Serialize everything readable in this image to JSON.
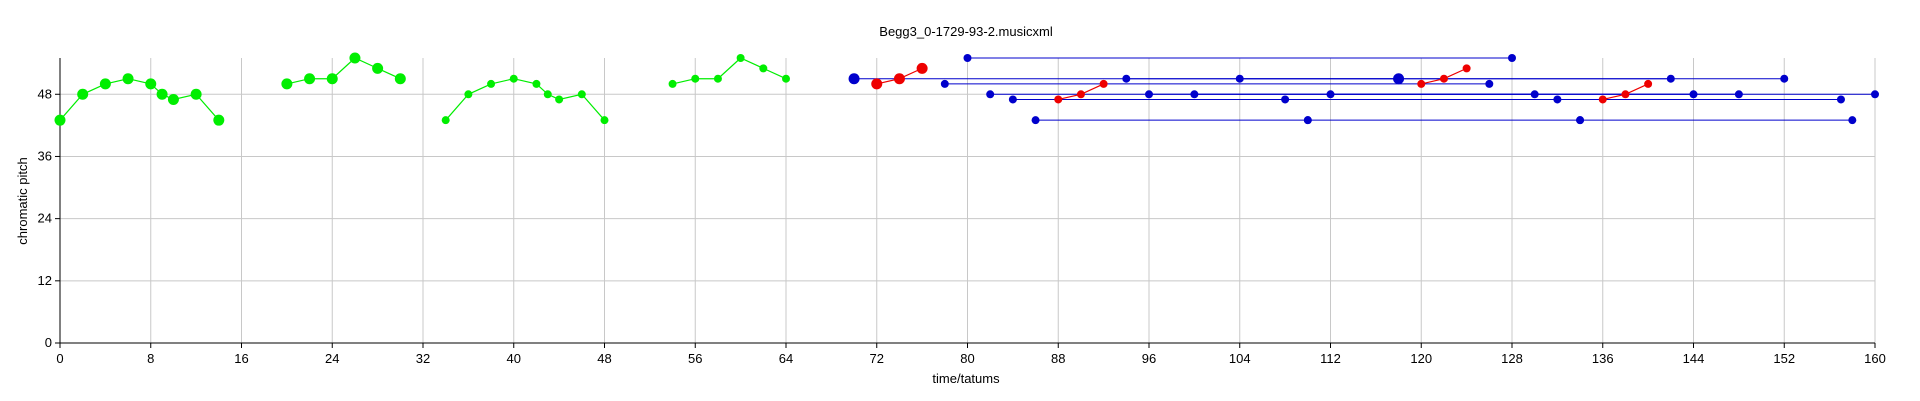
{
  "chart_data": {
    "type": "scatter",
    "title": "Begg3_0-1729-93-2.musicxml",
    "xlabel": "time/tatums",
    "ylabel": "chromatic pitch",
    "xlim": [
      0,
      160
    ],
    "ylim": [
      0,
      55
    ],
    "xticks": [
      0,
      8,
      16,
      24,
      32,
      40,
      48,
      56,
      64,
      72,
      80,
      88,
      96,
      104,
      112,
      120,
      128,
      136,
      144,
      152,
      160
    ],
    "yticks": [
      0,
      12,
      24,
      36,
      48
    ],
    "grid": true,
    "series": [
      {
        "color": "#00ee00",
        "style": "melody",
        "segments": [
          [
            [
              0,
              43
            ],
            [
              2,
              48
            ],
            [
              4,
              50
            ],
            [
              6,
              51
            ],
            [
              8,
              50
            ],
            [
              9,
              48
            ],
            [
              10,
              47
            ],
            [
              12,
              48
            ],
            [
              14,
              43
            ]
          ],
          [
            [
              20,
              50
            ],
            [
              22,
              51
            ],
            [
              24,
              51
            ],
            [
              26,
              55
            ],
            [
              28,
              53
            ],
            [
              30,
              51
            ]
          ],
          [
            [
              34,
              43
            ],
            [
              36,
              48
            ],
            [
              38,
              50
            ],
            [
              40,
              51
            ],
            [
              42,
              50
            ],
            [
              43,
              48
            ],
            [
              44,
              47
            ],
            [
              46,
              48
            ],
            [
              48,
              43
            ]
          ],
          [
            [
              54,
              50
            ],
            [
              56,
              51
            ],
            [
              58,
              51
            ],
            [
              60,
              55
            ],
            [
              62,
              53
            ],
            [
              64,
              51
            ]
          ]
        ],
        "large_points": [
          [
            0,
            43
          ],
          [
            2,
            48
          ],
          [
            4,
            50
          ],
          [
            6,
            51
          ],
          [
            8,
            50
          ],
          [
            9,
            48
          ],
          [
            10,
            47
          ],
          [
            12,
            48
          ],
          [
            14,
            43
          ],
          [
            20,
            50
          ],
          [
            22,
            51
          ],
          [
            24,
            51
          ],
          [
            26,
            55
          ],
          [
            28,
            53
          ],
          [
            30,
            51
          ]
        ]
      },
      {
        "color": "#0000cc",
        "style": "spans",
        "spans": [
          [
            70,
            118,
            51
          ],
          [
            78,
            126,
            50
          ],
          [
            80,
            128,
            55
          ],
          [
            82,
            130,
            48
          ],
          [
            84,
            132,
            47
          ],
          [
            86,
            110,
            43
          ],
          [
            94,
            142,
            51
          ],
          [
            96,
            144,
            48
          ],
          [
            100,
            148,
            48
          ],
          [
            104,
            152,
            51
          ],
          [
            108,
            157,
            47
          ],
          [
            110,
            134,
            43
          ],
          [
            112,
            160,
            48
          ],
          [
            134,
            158,
            43
          ]
        ],
        "large_points": [
          [
            70,
            51
          ],
          [
            118,
            51
          ]
        ]
      },
      {
        "color": "#ee0000",
        "style": "melody",
        "segments": [
          [
            [
              72,
              50
            ],
            [
              74,
              51
            ],
            [
              76,
              53
            ]
          ],
          [
            [
              88,
              47
            ],
            [
              90,
              48
            ],
            [
              92,
              50
            ]
          ],
          [
            [
              120,
              50
            ],
            [
              122,
              51
            ],
            [
              124,
              53
            ]
          ],
          [
            [
              136,
              47
            ],
            [
              138,
              48
            ],
            [
              140,
              50
            ]
          ]
        ],
        "large_points": [
          [
            72,
            50
          ],
          [
            74,
            51
          ],
          [
            76,
            53
          ]
        ]
      }
    ]
  }
}
